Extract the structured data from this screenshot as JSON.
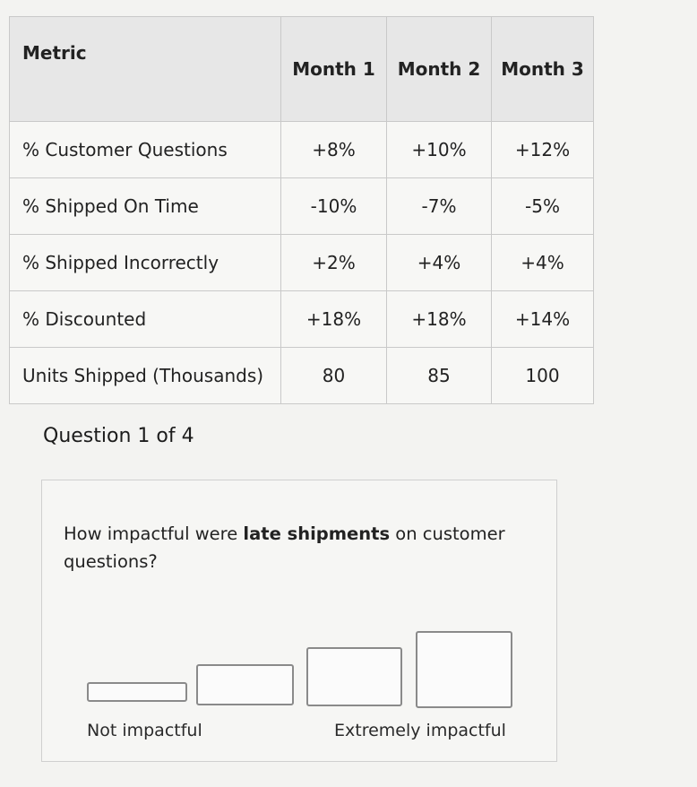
{
  "table": {
    "headers": [
      "Metric",
      "Month 1",
      "Month 2",
      "Month 3"
    ],
    "rows": [
      [
        "% Customer Questions",
        "+8%",
        "+10%",
        "+12%"
      ],
      [
        "% Shipped On Time",
        "-10%",
        "-7%",
        "-5%"
      ],
      [
        "% Shipped Incorrectly",
        "+2%",
        "+4%",
        "+4%"
      ],
      [
        "% Discounted",
        "+18%",
        "+18%",
        "+14%"
      ],
      [
        "Units Shipped (Thousands)",
        "80",
        "85",
        "100"
      ]
    ]
  },
  "question": {
    "counter": "Question 1 of 4",
    "prefix": "How impactful were ",
    "emphasis": "late shipments",
    "suffix": " on customer questions?"
  },
  "scale": {
    "low_label": "Not impactful",
    "high_label": "Extremely impactful",
    "options": 4
  }
}
